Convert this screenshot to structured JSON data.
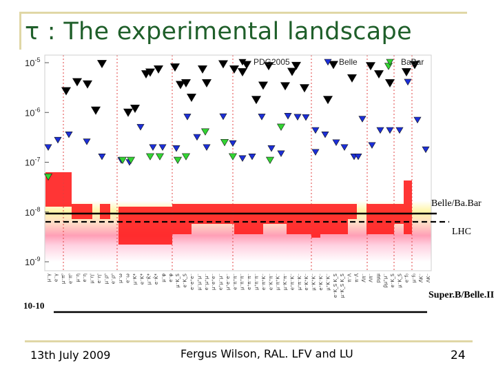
{
  "slide": {
    "title": "τ : The experimental landscape",
    "footer_date": "13th July 2009",
    "footer_author": "Fergus Wilson, RAL. LFV and LU",
    "page_number": "24",
    "side_labels": {
      "belle_babar": "Belle/Ba.Bar",
      "lhc": "LHC",
      "superb": "Super.B/Belle.II",
      "limit_1e10": "10-10"
    }
  },
  "chart_data": {
    "type": "scatter",
    "title": "",
    "xlabel": "",
    "ylabel": "",
    "y_scale": "log",
    "ylim": [
      1e-09,
      1e-05
    ],
    "y_ticks": [
      "10-5",
      "10-6",
      "10-7",
      "10-8",
      "10-9"
    ],
    "legend": {
      "placement": "top",
      "entries": [
        {
          "name": "PDG2005",
          "color": "#000000"
        },
        {
          "name": "Belle",
          "color": "#1c2fd6"
        },
        {
          "name": "BaBar",
          "color": "#33d433"
        }
      ]
    },
    "categories": [
      "μ⁻γ",
      "e⁻γ",
      "μ⁻π⁰",
      "e⁻π⁰",
      "μ⁻η",
      "e⁻η",
      "μ⁻η'",
      "e⁻η'",
      "μ⁻ρ⁰",
      "e⁻ρ⁰",
      "μ⁻ω",
      "e⁻ω",
      "μ⁻K*",
      "e⁻K*",
      "μ⁻K̄*",
      "e⁻K̄*",
      "μ⁻φ",
      "e⁻φ",
      "μ⁻K_S",
      "e⁻K_S",
      "e⁻e⁺e⁻",
      "μ⁻μ⁺μ⁻",
      "e⁻μ⁺μ⁻",
      "μ⁻e⁺e⁻",
      "e⁺μ⁻μ⁻",
      "μ⁺e⁻e⁻",
      "e⁻π⁺π⁻",
      "μ⁻π⁺π⁻",
      "e⁺π⁻π⁻",
      "μ⁺π⁻π⁻",
      "e⁻π⁺K⁻",
      "e⁻K⁺π⁻",
      "μ⁻π⁺K⁻",
      "μ⁻K⁺π⁻",
      "e⁺π⁻K⁻",
      "μ⁺π⁻K⁻",
      "e⁻K⁺K⁻",
      "μ⁻K⁺K⁻",
      "e⁺K⁻K⁻",
      "μ⁺K⁻K⁻",
      "e⁻K_S K_S",
      "μ⁻K_S K_S",
      "π⁻Λ",
      "π⁻Λ̄",
      "Λ̄π⁻",
      "Λπ⁻",
      "pμμ",
      "p̄μ⁺μ⁻",
      "e⁻K_S",
      "μ⁻K_S",
      "e⁻f₀",
      "μ⁻f₀",
      "Λ̄K⁻",
      "ΛK⁻"
    ],
    "series": [
      {
        "name": "PDG2005",
        "color": "#000000",
        "points": [
          {
            "x": 1,
            "y": 1.1e-06
          },
          {
            "x": 2,
            "y": 2.7e-06
          },
          {
            "x": 3,
            "y": 4.1e-06
          },
          {
            "x": 4,
            "y": 3.7e-06
          },
          {
            "x": 5,
            "y": 9.5e-06
          },
          {
            "x": 6,
            "y": 6.4e-06
          },
          {
            "x": 7,
            "y": 3.6e-06
          },
          {
            "x": 8,
            "y": 2e-06
          },
          {
            "x": 9,
            "y": 3.9e-06
          },
          {
            "x": 10,
            "y": 9.4e-06
          },
          {
            "x": 11,
            "y": 6.5e-06
          },
          {
            "x": 12,
            "y": 3.5e-06
          },
          {
            "x": 13,
            "y": 1.8e-06
          },
          {
            "x": 14,
            "y": 8.6e-06
          },
          {
            "x": 15,
            "y": 6.6e-06
          },
          {
            "x": 16,
            "y": 3.4e-06
          },
          {
            "x": 17,
            "y": 3.1e-06
          },
          {
            "x": 18,
            "y": 1.8e-06
          },
          {
            "x": 19,
            "y": 9.1e-06
          },
          {
            "x": 20,
            "y": 4.9e-06
          },
          {
            "x": 21,
            "y": 8.6e-06
          },
          {
            "x": 22,
            "y": 5.9e-06
          },
          {
            "x": 23,
            "y": 3.9e-06
          },
          {
            "x": 24,
            "y": 6.5e-06
          },
          {
            "x": 25,
            "y": 9.1e-06
          },
          {
            "x": 26,
            "y": 3.9e-06
          },
          {
            "x": 27,
            "y": 1.2e-06
          },
          {
            "x": 28,
            "y": 1e-06
          },
          {
            "x": 29,
            "y": 5.9e-06
          },
          {
            "x": 30,
            "y": 7.4e-06
          },
          {
            "x": 31,
            "y": 8.1e-06
          },
          {
            "x": 32,
            "y": 7.4e-06
          },
          {
            "x": 33,
            "y": 7.4e-06
          },
          {
            "x": 34,
            "y": 9.1e-06
          },
          {
            "x": 35,
            "y": 8.7e-06
          }
        ]
      },
      {
        "name": "Belle",
        "color": "#1c2fd6",
        "points": [
          {
            "x": 1,
            "y": 2e-07
          },
          {
            "x": 2,
            "y": 2.8e-07
          },
          {
            "x": 3,
            "y": 3.6e-07
          },
          {
            "x": 4,
            "y": 2.6e-07
          },
          {
            "x": 5,
            "y": 1.3e-07
          },
          {
            "x": 6,
            "y": 1.1e-07
          },
          {
            "x": 7,
            "y": 1e-07
          },
          {
            "x": 8,
            "y": 5.1e-07
          },
          {
            "x": 9,
            "y": 2e-07
          },
          {
            "x": 10,
            "y": 2e-07
          },
          {
            "x": 11,
            "y": 1.9e-07
          },
          {
            "x": 12,
            "y": 8.2e-07
          },
          {
            "x": 13,
            "y": 3.2e-07
          },
          {
            "x": 14,
            "y": 2e-07
          },
          {
            "x": 15,
            "y": 8.3e-07
          },
          {
            "x": 16,
            "y": 2.4e-07
          },
          {
            "x": 17,
            "y": 1.2e-07
          },
          {
            "x": 18,
            "y": 1.3e-07
          },
          {
            "x": 19,
            "y": 8.2e-07
          },
          {
            "x": 20,
            "y": 1.9e-07
          },
          {
            "x": 21,
            "y": 1.5e-07
          },
          {
            "x": 22,
            "y": 8.5e-07
          },
          {
            "x": 23,
            "y": 8.1e-07
          },
          {
            "x": 24,
            "y": 8e-07
          },
          {
            "x": 25,
            "y": 1.6e-07
          },
          {
            "x": 26,
            "y": 3.6e-07
          },
          {
            "x": 27,
            "y": 2.5e-07
          },
          {
            "x": 28,
            "y": 2e-07
          },
          {
            "x": 29,
            "y": 1.3e-07
          },
          {
            "x": 30,
            "y": 7.4e-07
          },
          {
            "x": 31,
            "y": 2.2e-07
          },
          {
            "x": 32,
            "y": 4.4e-07
          },
          {
            "x": 33,
            "y": 4.4e-07
          },
          {
            "x": 34,
            "y": 4.4e-07
          },
          {
            "x": 35,
            "y": 4.1e-06
          },
          {
            "x": 36,
            "y": 7.1e-07
          },
          {
            "x": 37,
            "y": 1.8e-07
          },
          {
            "x": 38,
            "y": 4.4e-07
          },
          {
            "x": 39,
            "y": 1.3e-07
          }
        ]
      },
      {
        "name": "BaBar",
        "color": "#33d433",
        "points": [
          {
            "x": 1,
            "y": 5.1e-08
          },
          {
            "x": 2,
            "y": 1.1e-07
          },
          {
            "x": 3,
            "y": 1.1e-07
          },
          {
            "x": 4,
            "y": 1.3e-07
          },
          {
            "x": 5,
            "y": 1.3e-07
          },
          {
            "x": 6,
            "y": 1.1e-07
          },
          {
            "x": 7,
            "y": 1.3e-07
          },
          {
            "x": 8,
            "y": 4.1e-07
          },
          {
            "x": 9,
            "y": 2.5e-07
          },
          {
            "x": 10,
            "y": 1.3e-07
          },
          {
            "x": 11,
            "y": 1.1e-07
          },
          {
            "x": 12,
            "y": 5.1e-07
          },
          {
            "x": 13,
            "y": 8.5e-06
          }
        ]
      }
    ],
    "limit_lines": [
      {
        "name": "Belle/Ba.Bar",
        "value": 1.3e-08,
        "style": "solid"
      },
      {
        "name": "LHC",
        "value": 8.6e-09,
        "style": "dashed"
      },
      {
        "name": "Super.B/Belle.II",
        "value": 1e-10,
        "style": "solid"
      }
    ]
  }
}
